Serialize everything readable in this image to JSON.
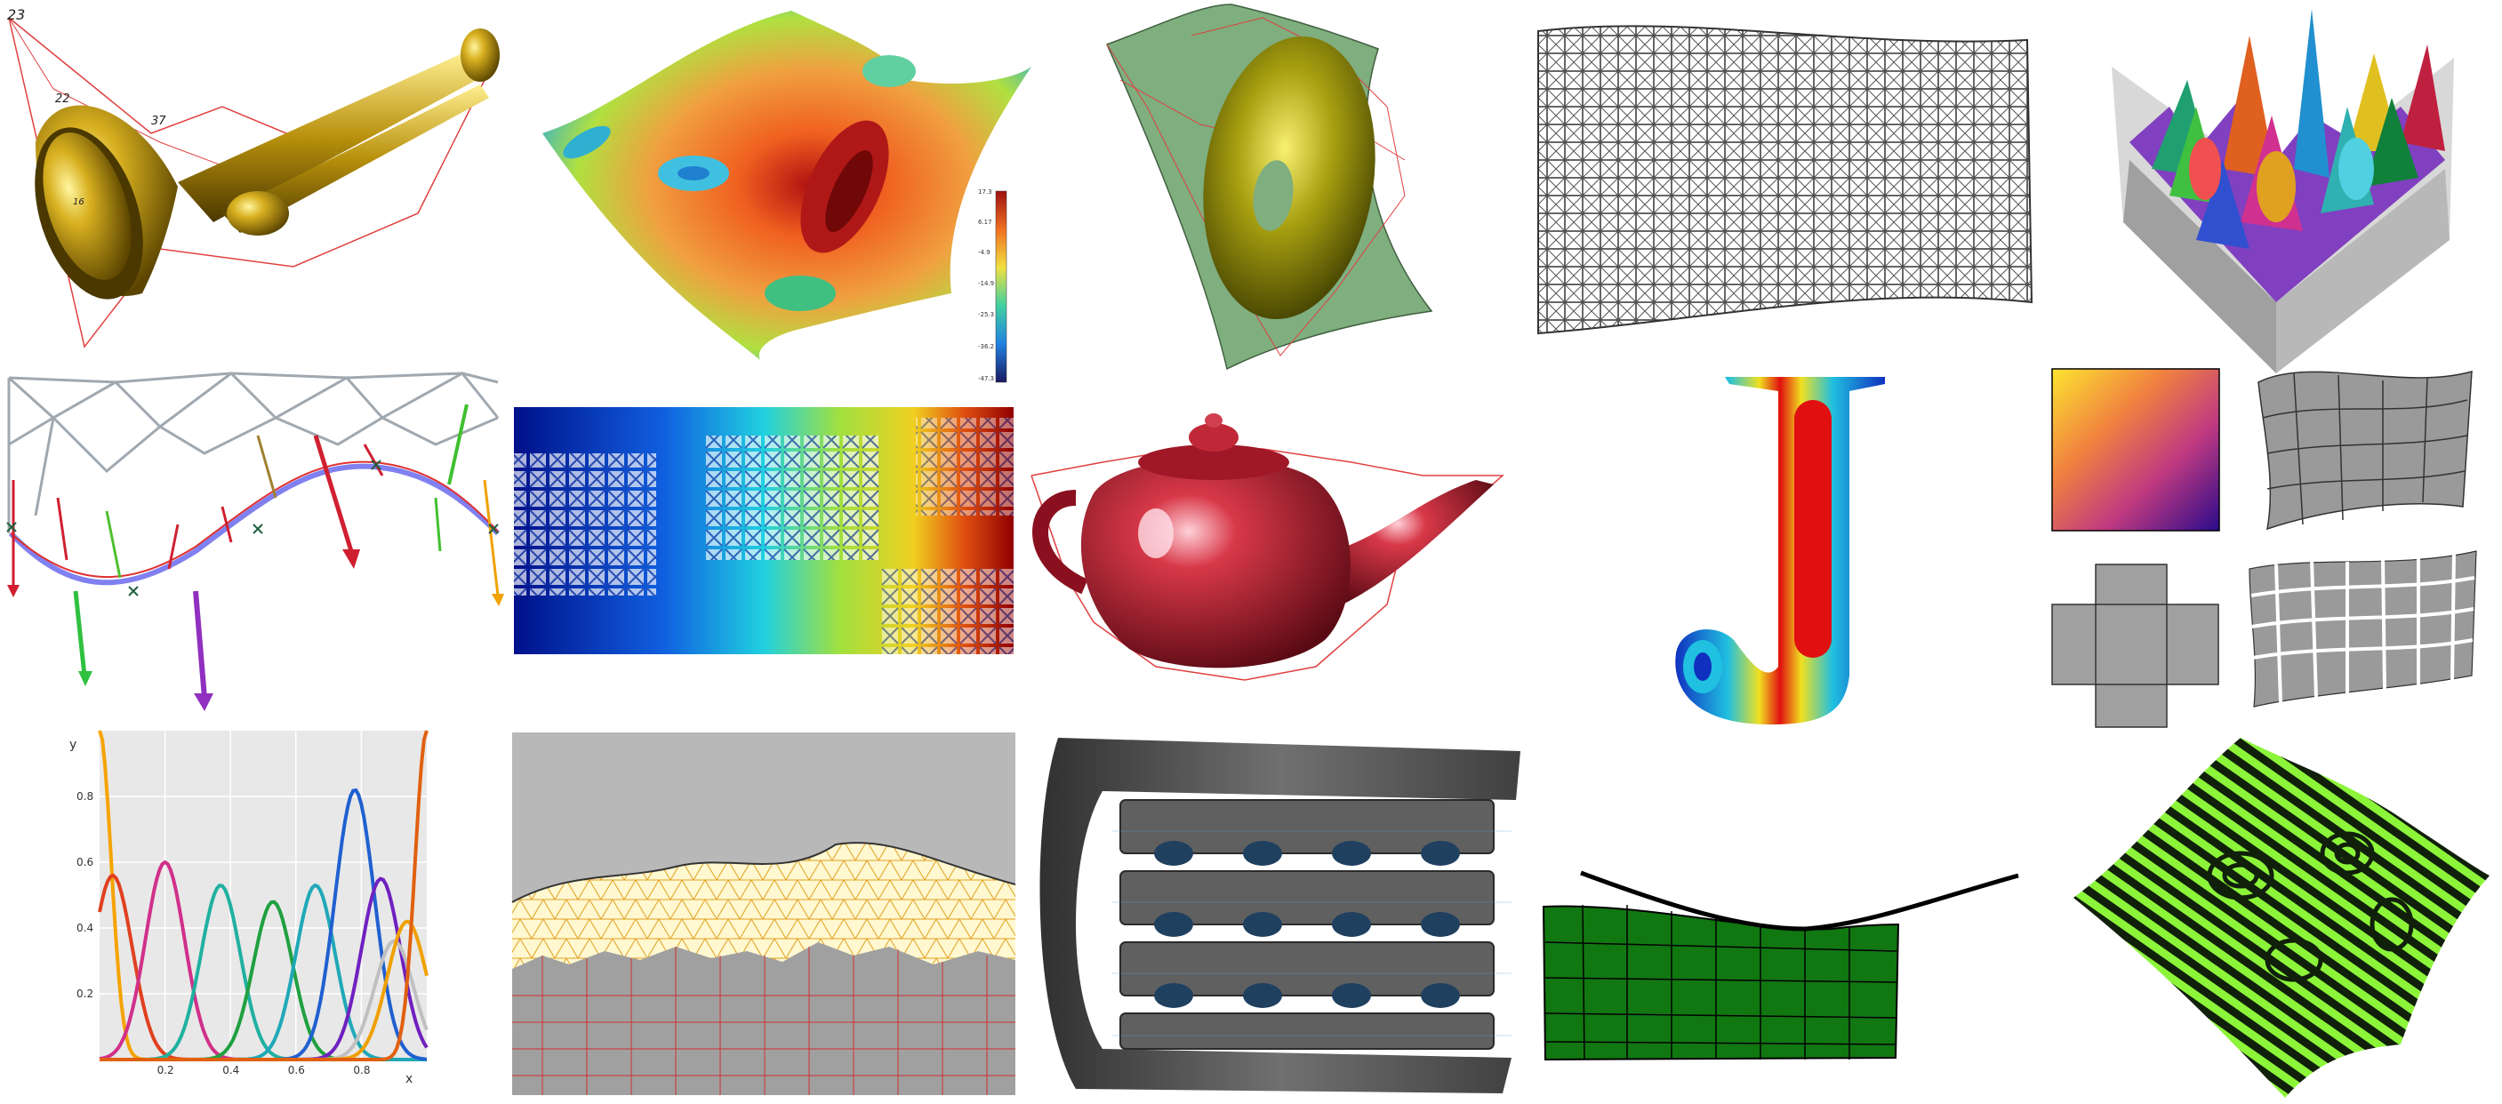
{
  "gallery": {
    "trumpet": {
      "labels": [
        "23",
        "22",
        "37",
        "16"
      ]
    },
    "heat_surface": {
      "colorbar_ticks": [
        "17.3",
        "6.17",
        "-4.9",
        "-14.9",
        "-25.3",
        "-36.2",
        "-47.3"
      ]
    },
    "plot": {
      "chart_data": {
        "type": "line",
        "title": "",
        "xlabel": "x",
        "ylabel": "y",
        "xlim": [
          0,
          1
        ],
        "ylim": [
          0,
          1
        ],
        "x_ticks": [
          "0.2",
          "0.4",
          "0.6",
          "0.8"
        ],
        "y_ticks": [
          "0.2",
          "0.4",
          "0.6",
          "0.8"
        ],
        "grid": true,
        "series": [
          {
            "color": "#f5a300",
            "peak_x": 0.0,
            "peak_y": 1.0
          },
          {
            "color": "#e04020",
            "peak_x": 0.04,
            "peak_y": 0.56
          },
          {
            "color": "#d0308a",
            "peak_x": 0.2,
            "peak_y": 0.6
          },
          {
            "color": "#20b0a0",
            "peak_x": 0.37,
            "peak_y": 0.53
          },
          {
            "color": "#20a040",
            "peak_x": 0.53,
            "peak_y": 0.48
          },
          {
            "color": "#20a8b8",
            "peak_x": 0.66,
            "peak_y": 0.53
          },
          {
            "color": "#2060d0",
            "peak_x": 0.78,
            "peak_y": 0.82
          },
          {
            "color": "#7020c0",
            "peak_x": 0.86,
            "peak_y": 0.55
          },
          {
            "color": "#c0c0c0",
            "peak_x": 0.9,
            "peak_y": 0.36
          },
          {
            "color": "#f0a000",
            "peak_x": 0.94,
            "peak_y": 0.42
          },
          {
            "color": "#e06010",
            "peak_x": 1.0,
            "peak_y": 1.0
          }
        ]
      }
    },
    "colors": {
      "gold": "#c09a10",
      "teapot_red": "#b8202e",
      "mesh_gray": "#555555",
      "lime": "#90ff40",
      "dark_green": "#117711"
    }
  }
}
